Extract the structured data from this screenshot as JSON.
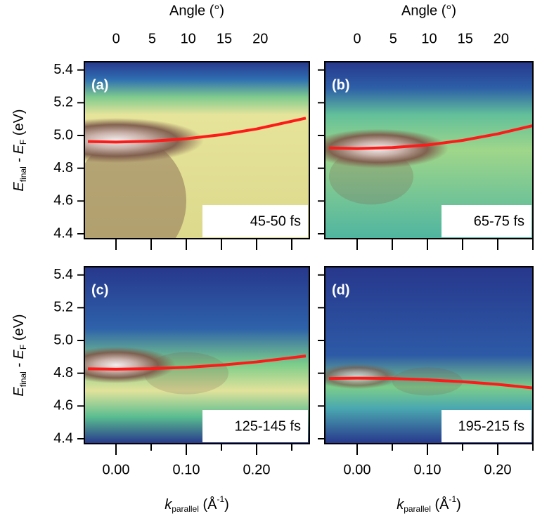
{
  "chart_data": [
    {
      "type": "line",
      "panel_label": "(a)",
      "annotation": "45-50 fs",
      "top_axis_label": "Angle (°)",
      "ylabel": [
        "E",
        "final",
        " - E",
        "F",
        " (eV)"
      ],
      "x": [
        -0.04,
        0,
        0.05,
        0.1,
        0.15,
        0.2,
        0.27
      ],
      "values": [
        4.963,
        4.96,
        4.965,
        4.98,
        5.005,
        5.04,
        5.106
      ],
      "color": "#ff1a1a",
      "xlim": [
        -0.045,
        0.275
      ],
      "ylim": [
        4.37,
        5.45
      ],
      "xticks": [
        0,
        0.05,
        0.1,
        0.15,
        0.2,
        0.25
      ],
      "show_xticklabels": false,
      "yticks": [
        4.4,
        4.6,
        4.8,
        {
          "value": 5,
          "label": "5.0"
        },
        5.2,
        5.4
      ],
      "show_yticklabels": true,
      "x2lim": [
        -4.4,
        26.8
      ],
      "x2ticks": [
        0,
        5,
        10,
        15,
        20
      ]
    },
    {
      "type": "line",
      "panel_label": "(b)",
      "annotation": "65-75 fs",
      "top_axis_label": "Angle (°)",
      "x": [
        -0.04,
        0,
        0.05,
        0.1,
        0.15,
        0.2,
        0.25
      ],
      "values": [
        4.924,
        4.92,
        4.926,
        4.942,
        4.97,
        5.01,
        5.06
      ],
      "color": "#ff1a1a",
      "xlim": [
        -0.046,
        0.25
      ],
      "ylim": [
        4.37,
        5.45
      ],
      "xticks": [
        0,
        0.05,
        0.1,
        0.15,
        0.2,
        0.25
      ],
      "show_xticklabels": false,
      "yticks": [
        4.4,
        4.6,
        4.8,
        5,
        5.2,
        5.4
      ],
      "show_yticklabels": false,
      "x2lim": [
        -4.5,
        24.4
      ],
      "x2ticks": [
        0,
        5,
        10,
        15,
        20
      ]
    },
    {
      "type": "line",
      "panel_label": "(c)",
      "annotation": "125-145 fs",
      "ylabel": [
        "E",
        "final",
        " - E",
        "F",
        " (eV)"
      ],
      "xlabel": [
        "k",
        "parallel",
        " (Å",
        "-1",
        ")"
      ],
      "x": [
        -0.04,
        0,
        0.05,
        0.1,
        0.15,
        0.2,
        0.27
      ],
      "values": [
        4.827,
        4.825,
        4.828,
        4.836,
        4.85,
        4.869,
        4.905
      ],
      "color": "#ff1a1a",
      "xlim": [
        -0.045,
        0.275
      ],
      "ylim": [
        4.37,
        5.45
      ],
      "xticks": [
        {
          "value": 0,
          "label": "0.00"
        },
        {
          "value": 0.1,
          "label": "0.10"
        },
        {
          "value": 0.2,
          "label": "0.20"
        }
      ],
      "show_xticklabels": true,
      "xminorticks": [
        0.05,
        0.15,
        0.25
      ],
      "yticks": [
        4.4,
        4.6,
        4.8,
        {
          "value": 5,
          "label": "5.0"
        },
        5.2,
        5.4
      ],
      "show_yticklabels": true
    },
    {
      "type": "line",
      "panel_label": "(d)",
      "annotation": "195-215 fs",
      "xlabel": [
        "k",
        "parallel",
        " (Å",
        "-1",
        ")"
      ],
      "x": [
        -0.04,
        0,
        0.05,
        0.1,
        0.15,
        0.2,
        0.25
      ],
      "values": [
        4.768,
        4.77,
        4.768,
        4.76,
        4.748,
        4.732,
        4.71
      ],
      "color": "#ff1a1a",
      "xlim": [
        -0.046,
        0.25
      ],
      "ylim": [
        4.37,
        5.45
      ],
      "xticks": [
        {
          "value": 0,
          "label": "0.00"
        },
        {
          "value": 0.1,
          "label": "0.10"
        },
        {
          "value": 0.2,
          "label": "0.20"
        }
      ],
      "show_xticklabels": true,
      "xminorticks": [
        0.05,
        0.15,
        0.25
      ],
      "yticks": [
        4.4,
        4.6,
        4.8,
        5,
        5.2,
        5.4
      ],
      "show_yticklabels": false
    }
  ]
}
